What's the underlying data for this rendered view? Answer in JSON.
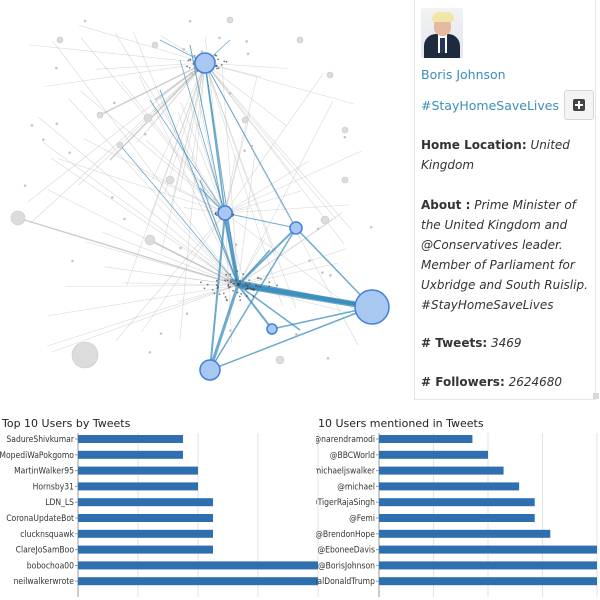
{
  "profile": {
    "name": "Boris Johnson",
    "hashtag": "#StayHomeSaveLives",
    "home_location_label": "Home Location:",
    "home_location": "United Kingdom",
    "about_label": "About :",
    "about": "Prime Minister of the United Kingdom and @Conservatives leader. Member of Parliament for Uxbridge and South Ruislip. #StayHomeSaveLives",
    "tweets_label": "# Tweets:",
    "tweets": "3469",
    "followers_label": "# Followers:",
    "followers": "2624680"
  },
  "colors": {
    "bar": "#2f6fb0",
    "node_fill": "#a8c8f2",
    "node_stroke": "#3f7fe0",
    "link": "#3c8dbc"
  },
  "chart_data": [
    {
      "type": "bar",
      "title": "Top 10 Users by Tweets",
      "categories": [
        "SadureShivkumar",
        "MopediWaPokgomo",
        "MartinWalker95",
        "Hornsby31",
        "LDN_LS",
        "CoronaUpdateBot",
        "clucknsquawk",
        "ClareJoSamBoo",
        "bobochoa00",
        "neilwalkerwrote"
      ],
      "values": [
        7,
        7,
        8,
        8,
        9,
        9,
        9,
        9,
        16,
        16
      ],
      "xlim": [
        0,
        16
      ]
    },
    {
      "type": "bar",
      "title": "10 Users mentioned in Tweets",
      "categories": [
        "@narendramodi",
        "@BBCWorld",
        "@michaeljswalker",
        "@michael",
        "@TigerRajaSingh",
        "@Femi",
        "@BrendonHope",
        "@EboneeDavis",
        "@BorisJohnson",
        "realDonaldTrump"
      ],
      "values": [
        6,
        7,
        8,
        9,
        10,
        10,
        11,
        14,
        14,
        14
      ],
      "xlim": [
        0,
        14
      ]
    }
  ]
}
